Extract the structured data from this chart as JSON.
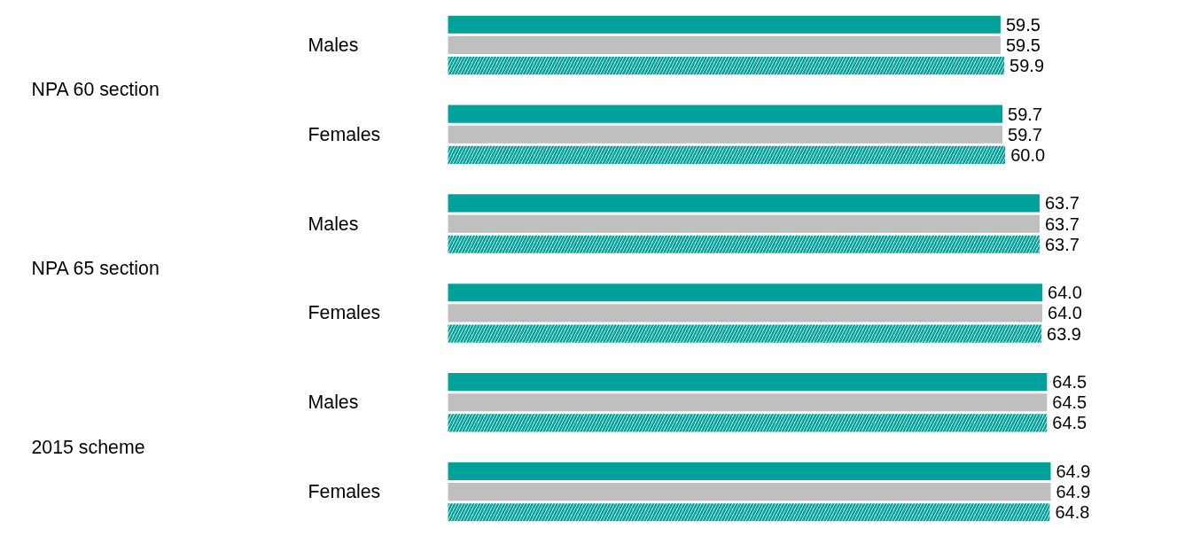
{
  "chart_data": {
    "type": "bar",
    "orientation": "horizontal",
    "grid": false,
    "categories": [
      "Males",
      "Females",
      "Males",
      "Females",
      "Males",
      "Females"
    ],
    "annotations": [
      "NPA 60 section",
      "NPA 65 section",
      "2015 scheme"
    ],
    "series": [
      {
        "color": "#00a19a",
        "values": [
          59.5,
          59.7,
          63.7,
          64.0,
          64.5,
          64.9
        ],
        "value_labels": [
          "59.5",
          "59.7",
          "63.7",
          "64.0",
          "64.5",
          "64.9"
        ]
      },
      {
        "color": "#bfbfbf",
        "values": [
          59.5,
          59.7,
          63.7,
          64.0,
          64.5,
          64.9
        ],
        "value_labels": [
          "59.5",
          "59.7",
          "63.7",
          "64.0",
          "64.5",
          "64.9"
        ]
      },
      {
        "color": "#00a19a",
        "values": [
          59.9,
          60.0,
          63.7,
          63.9,
          64.5,
          64.8
        ],
        "value_labels": [
          "59.9",
          "60.0",
          "63.7",
          "63.9",
          "64.5",
          "64.8"
        ]
      }
    ]
  }
}
